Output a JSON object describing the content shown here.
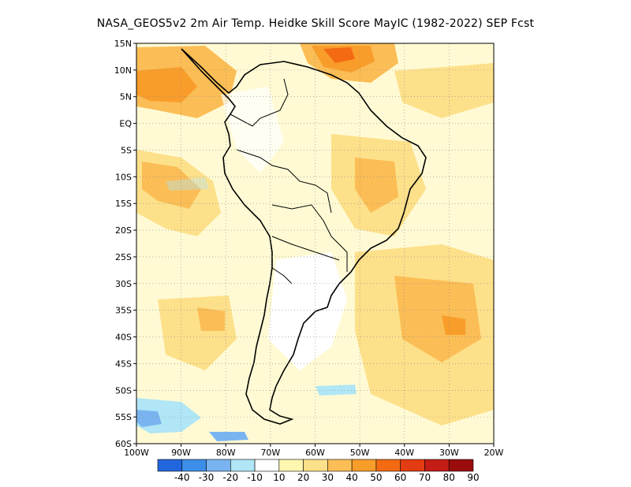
{
  "title": "NASA_GEOS5v2  2m Air Temp. Heidke Skill Score MayIC (1982-2022) SEP Fcst",
  "map": {
    "lon_range": [
      -100,
      -20
    ],
    "lat_range": [
      -60,
      15
    ],
    "x_ticks": [
      "100W",
      "90W",
      "80W",
      "70W",
      "60W",
      "50W",
      "40W",
      "30W",
      "20W"
    ],
    "y_ticks": [
      "15N",
      "10N",
      "5N",
      "EQ",
      "5S",
      "10S",
      "15S",
      "20S",
      "25S",
      "30S",
      "35S",
      "40S",
      "45S",
      "50S",
      "55S",
      "60S"
    ],
    "grid": "dotted"
  },
  "colorbar": {
    "labels": [
      "-40",
      "-30",
      "-20",
      "-10",
      "10",
      "20",
      "30",
      "40",
      "50",
      "60",
      "70",
      "80",
      "90"
    ],
    "colors": [
      "#2266dd",
      "#3d8ee8",
      "#79b4f0",
      "#b0e6f6",
      "#ffffff",
      "#fff6b0",
      "#fde08a",
      "#fbbd55",
      "#f99d2a",
      "#f36a12",
      "#e33c12",
      "#c31d16",
      "#9b0d0d"
    ]
  }
}
